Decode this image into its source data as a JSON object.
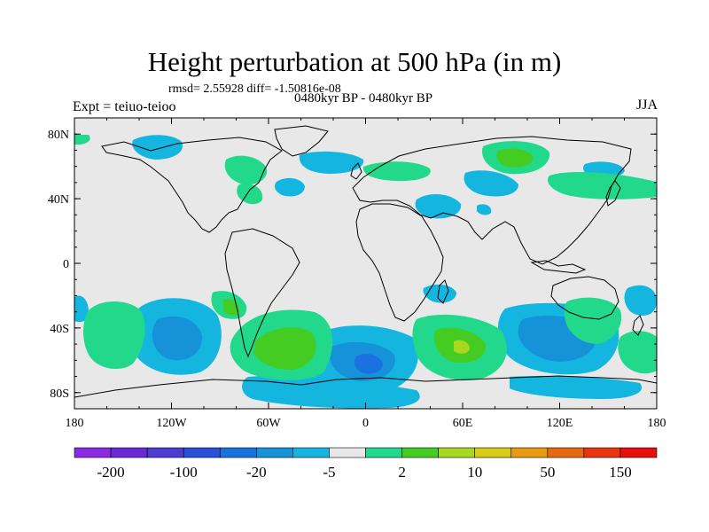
{
  "title": "Height perturbation at 500 hPa (in m)",
  "stats": "rmsd= 2.55928 diff= -1.50816e-08",
  "period": "0480kyr BP - 0480kyr BP",
  "experiment": "Expt = teiuo-teioo",
  "season": "JJA",
  "map": {
    "projection": "cylindrical-equidistant",
    "lon_range": [
      -180,
      180
    ],
    "lat_range": [
      -90,
      90
    ],
    "lat_ticks": [
      {
        "value": 80,
        "label": "80N"
      },
      {
        "value": 40,
        "label": "40N"
      },
      {
        "value": 0,
        "label": "0"
      },
      {
        "value": -40,
        "label": "40S"
      },
      {
        "value": -80,
        "label": "80S"
      }
    ],
    "lon_ticks": [
      {
        "value": -180,
        "label": "180"
      },
      {
        "value": -120,
        "label": "120W"
      },
      {
        "value": -60,
        "label": "60W"
      },
      {
        "value": 0,
        "label": "0"
      },
      {
        "value": 60,
        "label": "60E"
      },
      {
        "value": 120,
        "label": "120E"
      },
      {
        "value": 180,
        "label": "180"
      }
    ],
    "background_color": "#e8e8e8",
    "coastline_color": "#000000"
  },
  "colorbar": {
    "colors": [
      "#8a2be2",
      "#6a28d6",
      "#4f3ad2",
      "#2a4fd8",
      "#1a72e0",
      "#1592d8",
      "#14b6e0",
      "#e8e8e8",
      "#22d88a",
      "#44cc22",
      "#a8d820",
      "#d8cc18",
      "#e89a10",
      "#e86a10",
      "#e83410",
      "#e80e0e"
    ],
    "labels": [
      {
        "after_index": 0,
        "text": "-200"
      },
      {
        "after_index": 2,
        "text": "-100"
      },
      {
        "after_index": 4,
        "text": "-20"
      },
      {
        "after_index": 6,
        "text": "-5"
      },
      {
        "after_index": 8,
        "text": "2"
      },
      {
        "after_index": 10,
        "text": "10"
      },
      {
        "after_index": 12,
        "text": "50"
      },
      {
        "after_index": 14,
        "text": "150"
      }
    ]
  }
}
